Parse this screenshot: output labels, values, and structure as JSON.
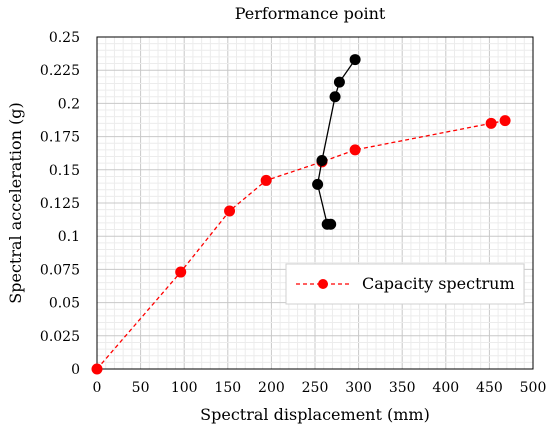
{
  "chart_data": {
    "type": "scatter",
    "title": "Performance point",
    "xlabel": "Spectral displacement (mm)",
    "ylabel": "Spectral acceleration (g)",
    "xlim": [
      0,
      500
    ],
    "ylim": [
      0,
      0.25
    ],
    "x_ticks": [
      "0",
      "50",
      "100",
      "150",
      "200",
      "250",
      "300",
      "350",
      "400",
      "450",
      "500"
    ],
    "y_ticks": [
      "0",
      "0.025",
      "0.05",
      "0.075",
      "0.1",
      "0.125",
      "0.15",
      "0.175",
      "0.2",
      "0.225",
      "0.25"
    ],
    "grid": true,
    "legend_position": "center-right",
    "series": [
      {
        "name": "Capacity spectrum",
        "color": "#ff0000",
        "line_style": "dashed",
        "marker": "circle",
        "in_legend": true,
        "x": [
          0,
          96,
          152,
          194,
          258,
          296,
          452,
          468
        ],
        "y": [
          0,
          0.073,
          0.119,
          0.142,
          0.156,
          0.165,
          0.185,
          0.187
        ]
      },
      {
        "color": "#000000",
        "line_style": "solid",
        "marker": "circle",
        "in_legend": false,
        "x": [
          296,
          278,
          273,
          258,
          253,
          264,
          268
        ],
        "y": [
          0.233,
          0.216,
          0.205,
          0.157,
          0.139,
          0.109,
          0.109
        ]
      }
    ]
  }
}
